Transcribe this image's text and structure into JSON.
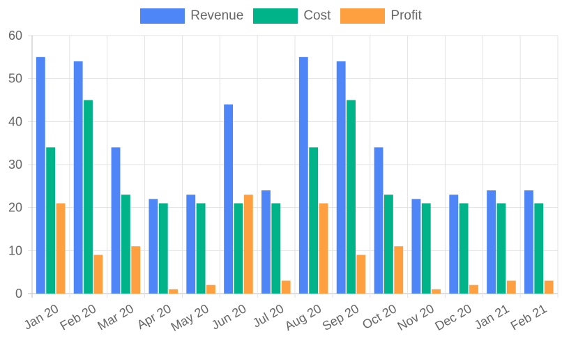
{
  "chart_data": {
    "type": "bar",
    "title": "",
    "xlabel": "",
    "ylabel": "",
    "ylim": [
      0,
      60
    ],
    "yticks": [
      0,
      10,
      20,
      30,
      40,
      50,
      60
    ],
    "grid": true,
    "legend_position": "top-center",
    "categories": [
      "Jan 20",
      "Feb 20",
      "Mar 20",
      "Apr 20",
      "May 20",
      "Jun 20",
      "Jul 20",
      "Aug 20",
      "Sep 20",
      "Oct 20",
      "Nov 20",
      "Dec 20",
      "Jan 21",
      "Feb 21"
    ],
    "series": [
      {
        "name": "Revenue",
        "color": "#4f86f7",
        "values": [
          55,
          54,
          34,
          22,
          23,
          44,
          24,
          55,
          54,
          34,
          22,
          23,
          24,
          24
        ]
      },
      {
        "name": "Cost",
        "color": "#00b388",
        "values": [
          34,
          45,
          23,
          21,
          21,
          21,
          21,
          34,
          45,
          23,
          21,
          21,
          21,
          21
        ]
      },
      {
        "name": "Profit",
        "color": "#ffa040",
        "values": [
          21,
          9,
          11,
          1,
          2,
          23,
          3,
          21,
          9,
          11,
          1,
          2,
          3,
          3
        ]
      }
    ]
  }
}
